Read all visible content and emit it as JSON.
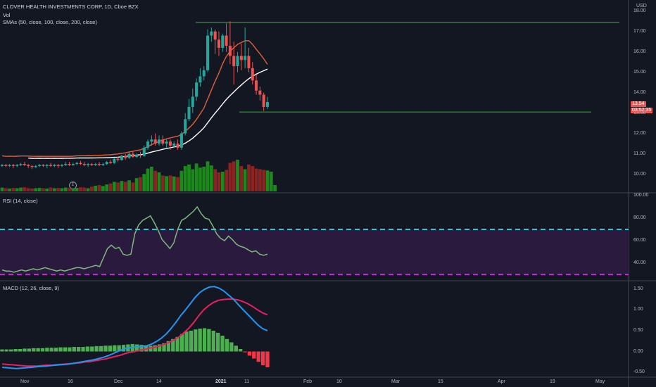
{
  "header": {
    "symbol_line": "CLOVER HEALTH INVESTMENTS CORP, 1D, Cboe BZX",
    "vol_label": "Vol",
    "sma_label": "SMAs (50, close, 100, close, 200, close)"
  },
  "price_axis": {
    "currency": "USD",
    "ticks": [
      "18.00",
      "17.00",
      "16.00",
      "15.00",
      "14.00",
      "13.00",
      "12.00",
      "11.00",
      "10.00"
    ],
    "last_price": "13.54",
    "countdown": "03:52:35"
  },
  "rsi": {
    "label": "RSI (14, close)",
    "ticks": [
      "100.00",
      "80.00",
      "60.00",
      "40.00"
    ]
  },
  "macd": {
    "label": "MACD (12, 26, close, 9)",
    "ticks": [
      "1.50",
      "1.00",
      "0.50",
      "0.00",
      "-0.50"
    ]
  },
  "time_axis": {
    "labels": [
      "Nov",
      "16",
      "Dec",
      "14",
      "2021",
      "11",
      "Feb",
      "10",
      "Mar",
      "15",
      "Apr",
      "19",
      "May"
    ]
  },
  "earnings_badge": "E",
  "colors": {
    "background": "#131722",
    "up": "#26a69a",
    "down": "#ef5350",
    "vol_up": "#1b8a1b",
    "vol_down": "#8b2323",
    "sma_orange": "#e0603a",
    "sma_white": "#ffffff",
    "rsi_line": "#7fb87f",
    "rsi_band_upper": "#26c6da",
    "rsi_band_lower": "#c026d3",
    "macd_line": "#2196f3",
    "signal_line": "#e91e63",
    "hline": "#22c322"
  },
  "chart_data": {
    "type": "candlestick",
    "title": "CLOVER HEALTH INVESTMENTS CORP, 1D, Cboe BZX",
    "price_range": [
      9.5,
      18.2
    ],
    "candles": [
      {
        "o": 10.4,
        "h": 10.5,
        "c": 10.45,
        "l": 10.35
      },
      {
        "o": 10.45,
        "h": 10.5,
        "c": 10.4,
        "l": 10.35
      },
      {
        "o": 10.4,
        "h": 10.5,
        "c": 10.45,
        "l": 10.35
      },
      {
        "o": 10.45,
        "h": 10.5,
        "c": 10.4,
        "l": 10.3
      },
      {
        "o": 10.4,
        "h": 10.5,
        "c": 10.45,
        "l": 10.35
      },
      {
        "o": 10.45,
        "h": 10.55,
        "c": 10.5,
        "l": 10.4
      },
      {
        "o": 10.5,
        "h": 10.6,
        "c": 10.45,
        "l": 10.4
      },
      {
        "o": 10.45,
        "h": 10.5,
        "c": 10.4,
        "l": 10.3
      },
      {
        "o": 10.4,
        "h": 10.45,
        "c": 10.35,
        "l": 10.25
      },
      {
        "o": 10.35,
        "h": 10.45,
        "c": 10.4,
        "l": 10.3
      },
      {
        "o": 10.4,
        "h": 10.5,
        "c": 10.45,
        "l": 10.35
      },
      {
        "o": 10.45,
        "h": 10.5,
        "c": 10.4,
        "l": 10.35
      },
      {
        "o": 10.4,
        "h": 10.5,
        "c": 10.45,
        "l": 10.3
      },
      {
        "o": 10.45,
        "h": 10.55,
        "c": 10.4,
        "l": 10.35
      },
      {
        "o": 10.4,
        "h": 10.5,
        "c": 10.45,
        "l": 10.35
      },
      {
        "o": 10.45,
        "h": 10.5,
        "c": 10.4,
        "l": 10.3
      },
      {
        "o": 10.4,
        "h": 10.5,
        "c": 10.45,
        "l": 10.35
      },
      {
        "o": 10.45,
        "h": 10.6,
        "c": 10.5,
        "l": 10.4
      },
      {
        "o": 10.5,
        "h": 10.6,
        "c": 10.45,
        "l": 10.4
      },
      {
        "o": 10.45,
        "h": 10.55,
        "c": 10.5,
        "l": 10.4
      },
      {
        "o": 10.5,
        "h": 10.6,
        "c": 10.55,
        "l": 10.45
      },
      {
        "o": 10.55,
        "h": 10.65,
        "c": 10.5,
        "l": 10.45
      },
      {
        "o": 10.5,
        "h": 10.6,
        "c": 10.45,
        "l": 10.4
      },
      {
        "o": 10.45,
        "h": 10.55,
        "c": 10.5,
        "l": 10.35
      },
      {
        "o": 10.5,
        "h": 10.55,
        "c": 10.45,
        "l": 10.4
      },
      {
        "o": 10.45,
        "h": 10.55,
        "c": 10.5,
        "l": 10.4
      },
      {
        "o": 10.5,
        "h": 10.6,
        "c": 10.45,
        "l": 10.4
      },
      {
        "o": 10.45,
        "h": 10.55,
        "c": 10.5,
        "l": 10.4
      },
      {
        "o": 10.5,
        "h": 10.65,
        "c": 10.6,
        "l": 10.45
      },
      {
        "o": 10.6,
        "h": 10.7,
        "c": 10.55,
        "l": 10.5
      },
      {
        "o": 10.55,
        "h": 10.8,
        "c": 10.75,
        "l": 10.5
      },
      {
        "o": 10.75,
        "h": 10.85,
        "c": 10.7,
        "l": 10.6
      },
      {
        "o": 10.7,
        "h": 10.95,
        "c": 10.9,
        "l": 10.65
      },
      {
        "o": 10.9,
        "h": 11.0,
        "c": 10.8,
        "l": 10.7
      },
      {
        "o": 10.8,
        "h": 11.1,
        "c": 11.0,
        "l": 10.75
      },
      {
        "o": 11.0,
        "h": 11.1,
        "c": 10.85,
        "l": 10.8
      },
      {
        "o": 10.85,
        "h": 11.0,
        "c": 10.95,
        "l": 10.8
      },
      {
        "o": 10.95,
        "h": 11.1,
        "c": 10.9,
        "l": 10.8
      },
      {
        "o": 10.9,
        "h": 11.4,
        "c": 11.3,
        "l": 10.85
      },
      {
        "o": 11.3,
        "h": 11.7,
        "c": 11.6,
        "l": 11.2
      },
      {
        "o": 11.6,
        "h": 11.9,
        "c": 11.7,
        "l": 11.4
      },
      {
        "o": 11.7,
        "h": 12.0,
        "c": 11.5,
        "l": 11.4
      },
      {
        "o": 11.5,
        "h": 11.9,
        "c": 11.7,
        "l": 11.4
      },
      {
        "o": 11.7,
        "h": 11.9,
        "c": 11.5,
        "l": 11.4
      },
      {
        "o": 11.5,
        "h": 11.7,
        "c": 11.6,
        "l": 11.3
      },
      {
        "o": 11.6,
        "h": 11.7,
        "c": 11.4,
        "l": 11.2
      },
      {
        "o": 11.4,
        "h": 11.6,
        "c": 11.5,
        "l": 11.3
      },
      {
        "o": 11.5,
        "h": 11.7,
        "c": 11.3,
        "l": 11.2
      },
      {
        "o": 11.3,
        "h": 12.1,
        "c": 12.0,
        "l": 11.2
      },
      {
        "o": 12.0,
        "h": 13.0,
        "c": 12.7,
        "l": 11.9
      },
      {
        "o": 12.7,
        "h": 13.7,
        "c": 13.3,
        "l": 12.6
      },
      {
        "o": 13.3,
        "h": 14.2,
        "c": 13.8,
        "l": 13.0
      },
      {
        "o": 13.8,
        "h": 14.7,
        "c": 14.5,
        "l": 13.6
      },
      {
        "o": 14.5,
        "h": 15.2,
        "c": 14.8,
        "l": 14.3
      },
      {
        "o": 14.8,
        "h": 15.3,
        "c": 15.1,
        "l": 14.6
      },
      {
        "o": 15.1,
        "h": 17.1,
        "c": 16.8,
        "l": 15.0
      },
      {
        "o": 16.8,
        "h": 17.2,
        "c": 17.0,
        "l": 16.5
      },
      {
        "o": 17.0,
        "h": 17.1,
        "c": 16.6,
        "l": 15.9
      },
      {
        "o": 16.6,
        "h": 17.0,
        "c": 16.2,
        "l": 15.8
      },
      {
        "o": 16.2,
        "h": 16.9,
        "c": 16.8,
        "l": 16.0
      },
      {
        "o": 16.8,
        "h": 17.4,
        "c": 16.3,
        "l": 16.0
      },
      {
        "o": 16.3,
        "h": 17.5,
        "c": 15.8,
        "l": 15.4
      },
      {
        "o": 15.8,
        "h": 16.5,
        "c": 15.3,
        "l": 14.4
      },
      {
        "o": 15.3,
        "h": 16.0,
        "c": 15.8,
        "l": 15.0
      },
      {
        "o": 15.8,
        "h": 16.4,
        "c": 15.6,
        "l": 15.1
      },
      {
        "o": 15.6,
        "h": 17.2,
        "c": 15.8,
        "l": 15.2
      },
      {
        "o": 15.8,
        "h": 16.2,
        "c": 15.2,
        "l": 15.0
      },
      {
        "o": 15.2,
        "h": 15.5,
        "c": 14.6,
        "l": 14.4
      },
      {
        "o": 14.6,
        "h": 14.9,
        "c": 14.1,
        "l": 13.9
      },
      {
        "o": 14.1,
        "h": 14.3,
        "c": 13.9,
        "l": 13.6
      },
      {
        "o": 13.9,
        "h": 14.0,
        "c": 13.3,
        "l": 13.1
      },
      {
        "o": 13.3,
        "h": 13.8,
        "c": 13.54,
        "l": 13.2
      }
    ],
    "hlines": [
      17.45,
      13.05
    ],
    "volume": [
      0.12,
      0.1,
      0.09,
      0.11,
      0.1,
      0.12,
      0.13,
      0.1,
      0.09,
      0.1,
      0.11,
      0.1,
      0.09,
      0.12,
      0.1,
      0.11,
      0.1,
      0.12,
      0.1,
      0.1,
      0.11,
      0.13,
      0.12,
      0.1,
      0.15,
      0.18,
      0.2,
      0.17,
      0.22,
      0.25,
      0.3,
      0.28,
      0.33,
      0.3,
      0.35,
      0.28,
      0.42,
      0.45,
      0.55,
      0.72,
      0.78,
      0.65,
      0.6,
      0.5,
      0.48,
      0.5,
      0.47,
      0.45,
      0.65,
      0.8,
      0.85,
      0.7,
      0.88,
      0.75,
      0.78,
      0.95,
      0.82,
      0.7,
      0.6,
      0.62,
      0.68,
      0.9,
      0.95,
      1.0,
      0.8,
      0.7,
      0.85,
      0.8,
      0.72,
      0.7,
      0.68,
      0.66,
      0.62,
      0.2
    ],
    "rsi_range": [
      25,
      100
    ],
    "rsi_bands": [
      70,
      30
    ],
    "rsi": [
      34,
      33,
      33,
      32,
      33,
      34,
      33,
      34,
      35,
      34,
      35,
      36,
      35,
      34,
      33,
      34,
      33,
      34,
      35,
      36,
      36,
      35,
      36,
      37,
      38,
      37,
      45,
      53,
      56,
      53,
      54,
      48,
      47,
      48,
      66,
      74,
      78,
      80,
      82,
      76,
      69,
      61,
      57,
      53,
      58,
      70,
      78,
      80,
      83,
      86,
      90,
      84,
      80,
      79,
      73,
      66,
      62,
      60,
      64,
      61,
      57,
      55,
      54,
      52,
      50,
      51,
      48,
      47,
      48
    ],
    "macd_range": [
      -0.6,
      1.65
    ],
    "macd": [
      -0.38,
      -0.39,
      -0.4,
      -0.41,
      -0.4,
      -0.39,
      -0.38,
      -0.37,
      -0.36,
      -0.35,
      -0.34,
      -0.33,
      -0.32,
      -0.31,
      -0.3,
      -0.28,
      -0.26,
      -0.24,
      -0.22,
      -0.2,
      -0.17,
      -0.14,
      -0.1,
      -0.05,
      0.0,
      0.05,
      0.08,
      0.1,
      0.11,
      0.12,
      0.14,
      0.18,
      0.24,
      0.32,
      0.42,
      0.55,
      0.7,
      0.86,
      1.0,
      1.15,
      1.3,
      1.42,
      1.5,
      1.55,
      1.56,
      1.52,
      1.45,
      1.35,
      1.25,
      1.12,
      1.0,
      0.88,
      0.76,
      0.64,
      0.55,
      0.5
    ],
    "signal": [
      -0.3,
      -0.31,
      -0.32,
      -0.33,
      -0.34,
      -0.35,
      -0.35,
      -0.35,
      -0.34,
      -0.33,
      -0.33,
      -0.32,
      -0.31,
      -0.3,
      -0.29,
      -0.28,
      -0.27,
      -0.25,
      -0.24,
      -0.22,
      -0.2,
      -0.18,
      -0.15,
      -0.12,
      -0.09,
      -0.05,
      -0.02,
      0.0,
      0.03,
      0.05,
      0.08,
      0.1,
      0.13,
      0.17,
      0.22,
      0.28,
      0.35,
      0.45,
      0.56,
      0.7,
      0.86,
      1.0,
      1.1,
      1.18,
      1.23,
      1.25,
      1.26,
      1.26,
      1.24,
      1.2,
      1.15,
      1.08,
      1.0,
      0.93,
      0.88
    ],
    "histogram": [
      0.05,
      0.05,
      0.05,
      0.06,
      0.06,
      0.07,
      0.07,
      0.08,
      0.08,
      0.08,
      0.09,
      0.09,
      0.09,
      0.1,
      0.1,
      0.1,
      0.11,
      0.11,
      0.11,
      0.12,
      0.12,
      0.13,
      0.13,
      0.14,
      0.14,
      0.15,
      0.15,
      0.16,
      0.17,
      0.18,
      0.17,
      0.16,
      0.15,
      0.14,
      0.15,
      0.17,
      0.2,
      0.25,
      0.3,
      0.35,
      0.42,
      0.48,
      0.5,
      0.53,
      0.55,
      0.56,
      0.54,
      0.5,
      0.45,
      0.38,
      0.3,
      0.22,
      0.14,
      0.06,
      -0.02,
      -0.1,
      -0.17,
      -0.25,
      -0.33,
      -0.38
    ]
  }
}
